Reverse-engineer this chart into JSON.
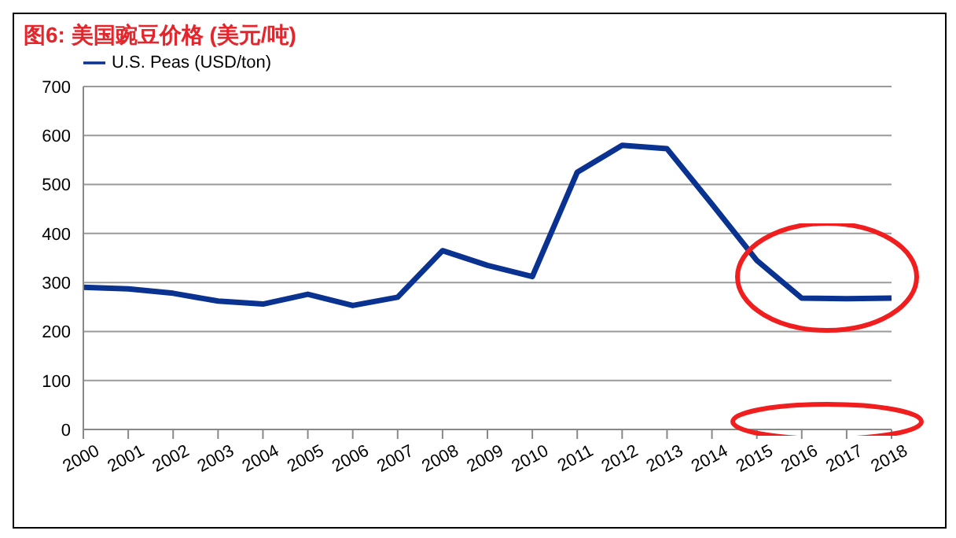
{
  "chart_data": {
    "type": "line",
    "title": "图6: 美国豌豆价格 (美元/吨)",
    "categories": [
      "2000",
      "2001",
      "2002",
      "2003",
      "2004",
      "2005",
      "2006",
      "2007",
      "2008",
      "2009",
      "2010",
      "2011",
      "2012",
      "2013",
      "2014",
      "2015",
      "2016",
      "2017",
      "2018"
    ],
    "series": [
      {
        "name": "U.S. Peas (USD/ton)",
        "color": "#0a3291",
        "values": [
          290,
          287,
          278,
          262,
          256,
          276,
          253,
          270,
          365,
          335,
          312,
          525,
          580,
          573,
          460,
          345,
          268,
          267,
          268
        ]
      }
    ],
    "ylim": [
      0,
      700
    ],
    "yticks": [
      0,
      100,
      200,
      300,
      400,
      500,
      600,
      700
    ],
    "grid": "y",
    "legend": "top left",
    "marker": "none",
    "line_style": "solid"
  }
}
